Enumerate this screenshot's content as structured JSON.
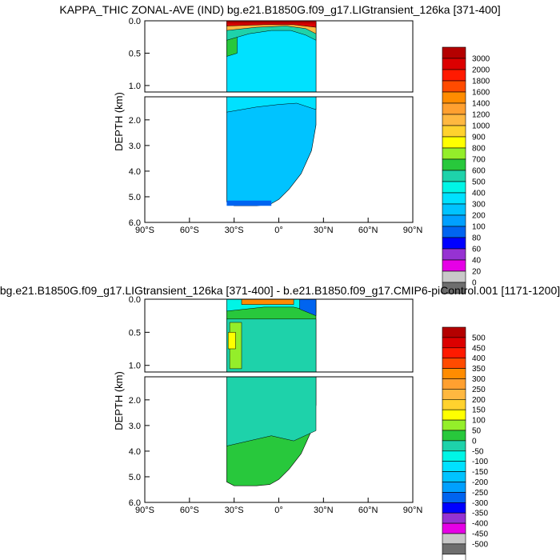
{
  "chart_data": [
    {
      "type": "heatmap",
      "title": "KAPPA_THIC ZONAL-AVE (IND) bg.e21.B1850G.f09_g17.LIGtransient_126ka [371-400]",
      "xlabel": "",
      "ylabel": "DEPTH (km)",
      "x_ticks": [
        "90°S",
        "60°S",
        "30°S",
        "0°",
        "30°N",
        "60°N",
        "90°N"
      ],
      "y_ticks_upper": [
        "0.0",
        "0.5",
        "1.0"
      ],
      "y_ticks_lower": [
        "2.0",
        "3.0",
        "4.0",
        "5.0",
        "6.0"
      ],
      "xlim": [
        -90,
        90
      ],
      "ylim": [
        6.0,
        0.0
      ],
      "colorbar_levels": [
        "3000",
        "2000",
        "1800",
        "1600",
        "1400",
        "1200",
        "1000",
        "900",
        "800",
        "700",
        "600",
        "500",
        "400",
        "300",
        "200",
        "100",
        "80",
        "60",
        "40",
        "20",
        "0"
      ],
      "colorbar_colors": [
        "#b40000",
        "#dc0000",
        "#ff1a00",
        "#ff4b00",
        "#ff8c00",
        "#ffa030",
        "#ffb840",
        "#ffd22e",
        "#ffff00",
        "#94ee2a",
        "#28c83c",
        "#1ed2aa",
        "#00f5e6",
        "#00e1ff",
        "#00c3ff",
        "#00a0ff",
        "#0064f0",
        "#0000ff",
        "#9632d2",
        "#e600e6",
        "#c8c8c8",
        "#6e6e6e"
      ]
    },
    {
      "type": "heatmap",
      "title": "bg.e21.B1850G.f09_g17.LIGtransient_126ka [371-400] - b.e21.B1850.f09_g17.CMIP6-piControl.001 [1171-1200]",
      "xlabel": "",
      "ylabel": "DEPTH (km)",
      "x_ticks": [
        "90°S",
        "60°S",
        "30°S",
        "0°",
        "30°N",
        "60°N",
        "90°N"
      ],
      "y_ticks_upper": [
        "0.0",
        "0.5",
        "1.0"
      ],
      "y_ticks_lower": [
        "2.0",
        "3.0",
        "4.0",
        "5.0",
        "6.0"
      ],
      "xlim": [
        -90,
        90
      ],
      "ylim": [
        6.0,
        0.0
      ],
      "colorbar_levels": [
        "500",
        "450",
        "400",
        "350",
        "300",
        "250",
        "200",
        "150",
        "100",
        "50",
        "0",
        "-50",
        "-100",
        "-150",
        "-200",
        "-250",
        "-300",
        "-350",
        "-400",
        "-450",
        "-500"
      ],
      "colorbar_colors": [
        "#b40000",
        "#dc0000",
        "#ff1a00",
        "#ff4b00",
        "#ff8c00",
        "#ffa030",
        "#ffb840",
        "#ffd22e",
        "#ffff00",
        "#94ee2a",
        "#28c83c",
        "#1ed2aa",
        "#00f5e6",
        "#00e1ff",
        "#00c3ff",
        "#00a0ff",
        "#0064f0",
        "#0000ff",
        "#9632d2",
        "#e600e6",
        "#c8c8c8",
        "#6e6e6e",
        "#ffffff"
      ]
    }
  ]
}
